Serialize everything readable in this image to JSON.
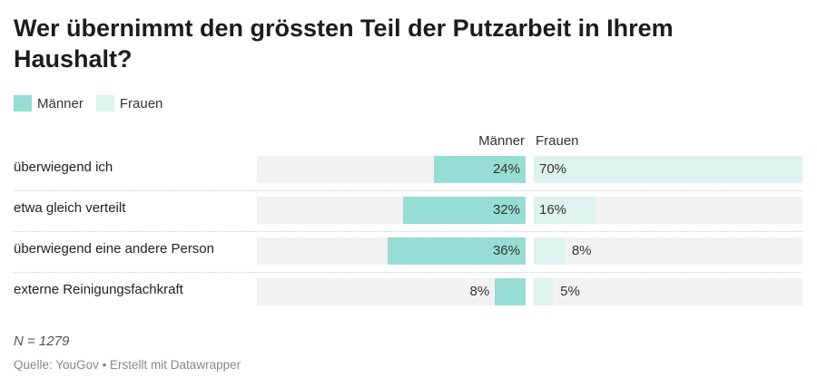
{
  "chart_data": {
    "type": "bar",
    "title": "Wer übernimmt den grössten Teil der Putzarbeit in Ihrem Haushalt?",
    "categories": [
      "überwiegend ich",
      "etwa gleich verteilt",
      "überwiegend eine andere Person",
      "externe Reinigungsfachkraft"
    ],
    "series": [
      {
        "name": "Männer",
        "values": [
          24,
          32,
          36,
          8
        ],
        "color": "#98ddd3"
      },
      {
        "name": "Frauen",
        "values": [
          70,
          16,
          8,
          5
        ],
        "color": "#ddf3ee"
      }
    ],
    "value_suffix": "%",
    "xlim": [
      0,
      70
    ],
    "legend": "top-left",
    "background_color": "#f2f2f2",
    "note": "N = 1279",
    "source": "Quelle: YouGov • Erstellt mit Datawrapper"
  }
}
